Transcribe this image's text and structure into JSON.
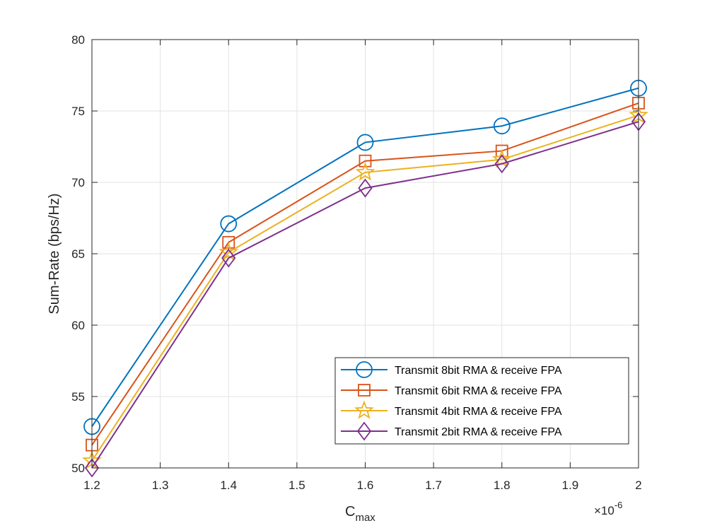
{
  "chart_data": {
    "type": "line",
    "title": "",
    "xlabel_main": "C",
    "xlabel_sub": "max",
    "ylabel": "Sum-Rate (bps/Hz)",
    "x_exponent_base": "×10",
    "x_exponent_power": "-6",
    "x": [
      1.2,
      1.4,
      1.6,
      1.8,
      2.0
    ],
    "xlim": [
      1.2,
      2.0
    ],
    "ylim": [
      50,
      80
    ],
    "xticks": [
      1.2,
      1.3,
      1.4,
      1.5,
      1.6,
      1.7,
      1.8,
      1.9,
      2.0
    ],
    "xtick_labels": [
      "1.2",
      "1.3",
      "1.4",
      "1.5",
      "1.6",
      "1.7",
      "1.8",
      "1.9",
      "2"
    ],
    "yticks": [
      50,
      55,
      60,
      65,
      70,
      75,
      80
    ],
    "ytick_labels": [
      "50",
      "55",
      "60",
      "65",
      "70",
      "75",
      "80"
    ],
    "grid": true,
    "legend_position": "bottom-right",
    "series": [
      {
        "name": "Transmit 8bit RMA & receive FPA",
        "color": "#0072BD",
        "marker": "circle",
        "values": [
          52.9,
          67.1,
          72.8,
          73.95,
          76.6
        ]
      },
      {
        "name": "Transmit 6bit RMA & receive FPA",
        "color": "#D95319",
        "marker": "square",
        "values": [
          51.6,
          65.8,
          71.5,
          72.2,
          75.55
        ]
      },
      {
        "name": "Transmit 4bit RMA & receive FPA",
        "color": "#EDB120",
        "marker": "star",
        "values": [
          50.5,
          65.1,
          70.7,
          71.6,
          74.7
        ]
      },
      {
        "name": "Transmit 2bit RMA & receive FPA",
        "color": "#7E2F8E",
        "marker": "diamond",
        "values": [
          50.0,
          64.7,
          69.6,
          71.3,
          74.25
        ]
      }
    ]
  }
}
